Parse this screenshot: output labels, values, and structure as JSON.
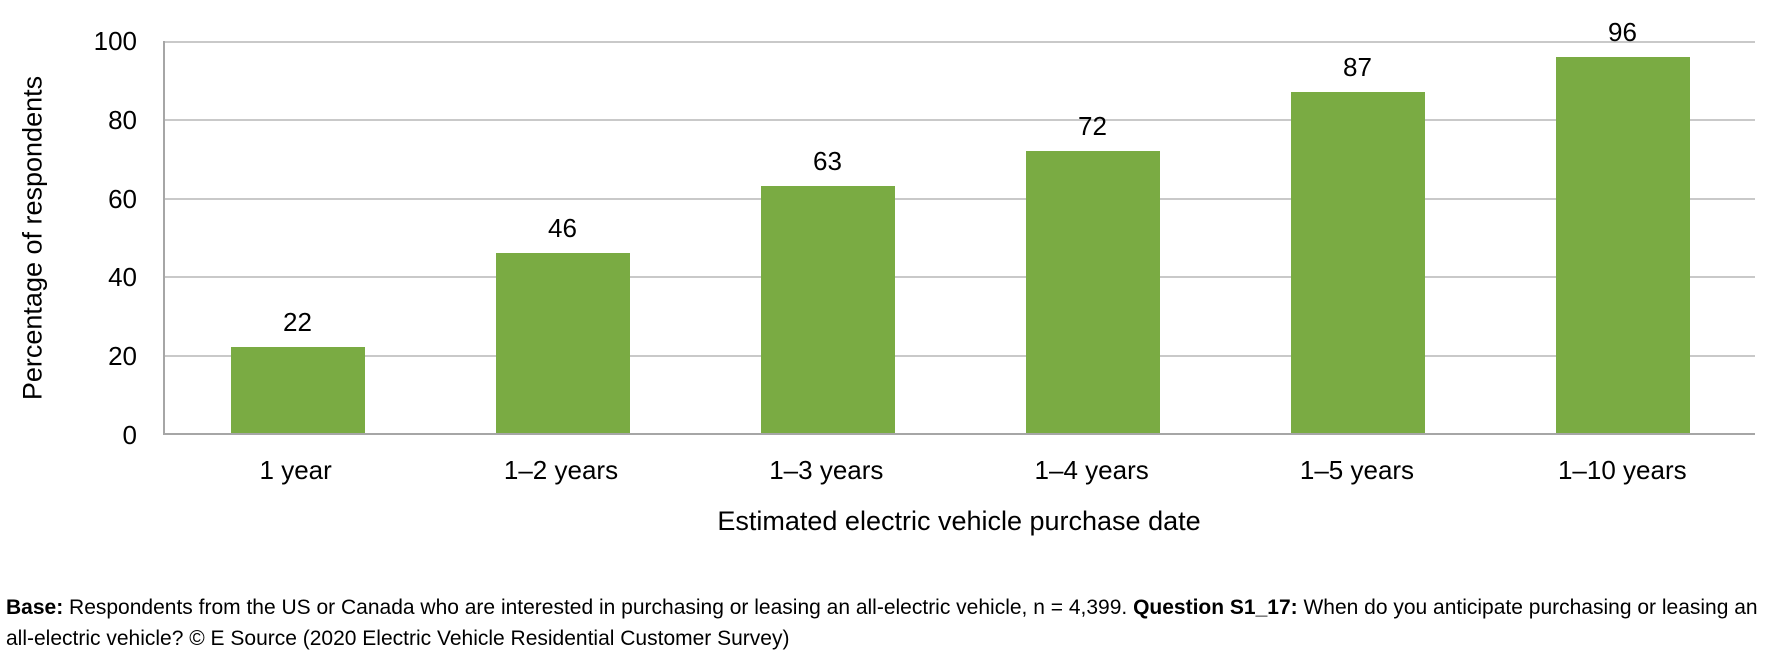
{
  "chart_data": {
    "type": "bar",
    "categories": [
      "1 year",
      "1–2 years",
      "1–3 years",
      "1–4 years",
      "1–5 years",
      "1–10 years"
    ],
    "values": [
      22,
      46,
      63,
      72,
      87,
      96
    ],
    "title": "",
    "xlabel": "Estimated electric vehicle purchase date",
    "ylabel": "Percentage of respondents",
    "ylim": [
      0,
      100
    ],
    "yticks": [
      0,
      20,
      40,
      60,
      80,
      100
    ],
    "grid": true,
    "legend_position": "none",
    "bar_color": "#7AAB43",
    "gridline_color": "#C9C9C9",
    "axis_color": "#A6A6A6"
  },
  "footer": {
    "base_label": "Base:",
    "base_text": " Respondents from the US or Canada who are interested in purchasing or leasing an all-electric vehicle, n = 4,399. ",
    "question_label": "Question S1_17:",
    "question_text": " When do you anticipate purchasing or leasing an all-electric vehicle? © E Source (2020 Electric Vehicle Residential Customer Survey)"
  }
}
